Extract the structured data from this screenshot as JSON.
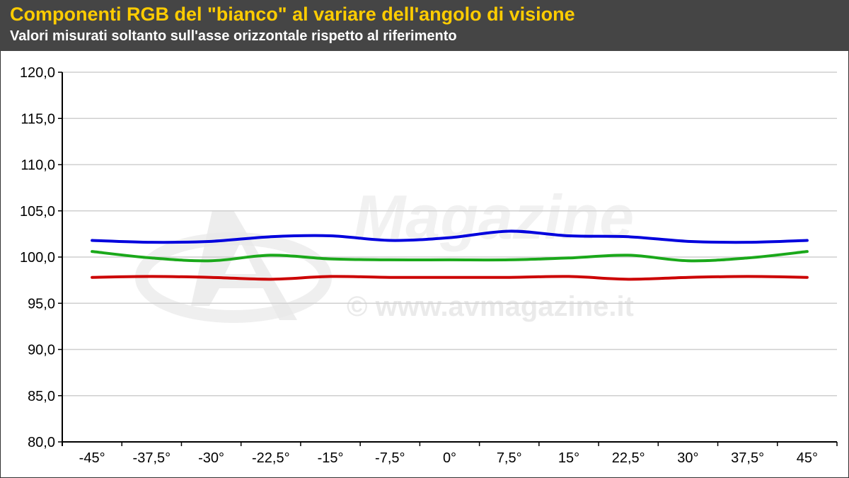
{
  "header": {
    "title": "Componenti RGB del \"bianco\" al variare dell'angolo di visione",
    "subtitle": "Valori misurati soltanto sull'asse orizzontale rispetto al riferimento"
  },
  "watermark": {
    "brand": "Magazine",
    "url": "© www.avmagazine.it"
  },
  "colors": {
    "header_bg": "#454545",
    "title": "#ffcc00",
    "red": "#cc0000",
    "green": "#1aa81a",
    "blue": "#0000dd"
  },
  "chart_data": {
    "type": "line",
    "title": "Componenti RGB del \"bianco\" al variare dell'angolo di visione",
    "subtitle": "Valori misurati soltanto sull'asse orizzontale rispetto al riferimento",
    "xlabel": "",
    "ylabel": "",
    "categories": [
      "-45°",
      "-37,5°",
      "-30°",
      "-22,5°",
      "-15°",
      "-7,5°",
      "0°",
      "7,5°",
      "15°",
      "22,5°",
      "30°",
      "37,5°",
      "45°"
    ],
    "ylim": [
      80,
      120
    ],
    "yticks": [
      "80,0",
      "85,0",
      "90,0",
      "95,0",
      "100,0",
      "105,0",
      "110,0",
      "115,0",
      "120,0"
    ],
    "grid": true,
    "legend": "none",
    "series": [
      {
        "color": "#0000dd",
        "values": [
          101.8,
          101.6,
          101.7,
          102.2,
          102.3,
          101.8,
          102.1,
          102.8,
          102.3,
          102.2,
          101.7,
          101.6,
          101.8
        ]
      },
      {
        "color": "#1aa81a",
        "values": [
          100.6,
          99.9,
          99.6,
          100.2,
          99.8,
          99.7,
          99.7,
          99.7,
          99.9,
          100.2,
          99.6,
          99.9,
          100.6
        ]
      },
      {
        "color": "#cc0000",
        "values": [
          97.8,
          97.9,
          97.8,
          97.6,
          97.9,
          97.8,
          97.8,
          97.8,
          97.9,
          97.6,
          97.8,
          97.9,
          97.8
        ]
      }
    ]
  }
}
